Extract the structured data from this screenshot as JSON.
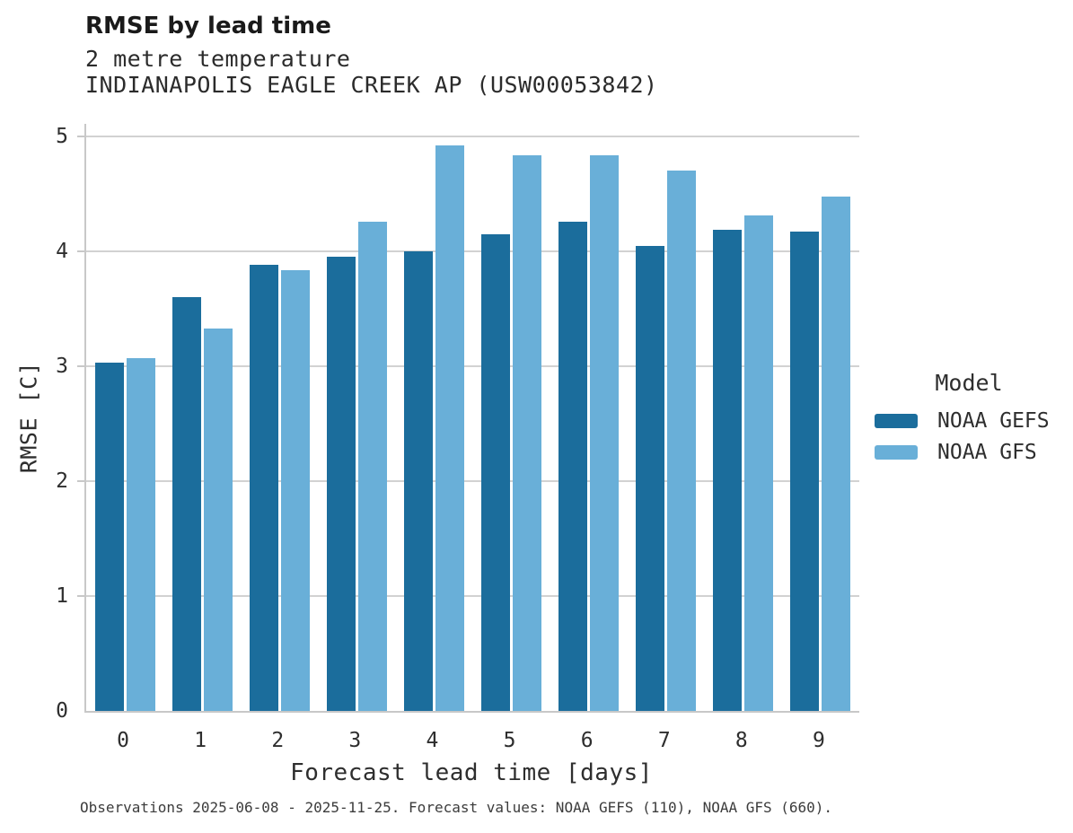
{
  "header": {
    "title": "RMSE by lead time",
    "subtitle1": "2 metre temperature",
    "subtitle2": "INDIANAPOLIS EAGLE CREEK AP (USW00053842)"
  },
  "chart_data": {
    "type": "bar",
    "title": "RMSE by lead time",
    "subtitle": "2 metre temperature — INDIANAPOLIS EAGLE CREEK AP (USW00053842)",
    "categories": [
      "0",
      "1",
      "2",
      "3",
      "4",
      "5",
      "6",
      "7",
      "8",
      "9"
    ],
    "series": [
      {
        "name": "NOAA GEFS",
        "color": "#1b6d9c",
        "values": [
          3.03,
          3.6,
          3.88,
          3.95,
          4.0,
          4.15,
          4.26,
          4.05,
          4.19,
          4.17
        ]
      },
      {
        "name": "NOAA GFS",
        "color": "#69afd8",
        "values": [
          3.07,
          3.33,
          3.84,
          4.26,
          4.92,
          4.84,
          4.84,
          4.7,
          4.31,
          4.48
        ]
      }
    ],
    "xlabel": "Forecast lead time [days]",
    "ylabel": "RMSE [C]",
    "ylim": [
      0,
      5.11
    ],
    "yticks": [
      0,
      1,
      2,
      3,
      4,
      5
    ],
    "grid": true,
    "legend_title": "Model",
    "legend_position": "right"
  },
  "legend": {
    "title": "Model",
    "entries": [
      {
        "label": "NOAA GEFS",
        "color": "#1b6d9c"
      },
      {
        "label": "NOAA GFS",
        "color": "#69afd8"
      }
    ]
  },
  "axes": {
    "xlabel": "Forecast lead time [days]",
    "ylabel": "RMSE [C]"
  },
  "footnote": "Observations 2025-06-08 - 2025-11-25. Forecast values: NOAA GEFS (110), NOAA GFS (660).",
  "colors": {
    "gefs_bar": "#1b6d9c",
    "gfs_bar": "#69afd8",
    "gridline": "#d2d2d2",
    "axis_spine": "#c8c8c8",
    "title_text": "#1a1a1a",
    "body_text": "#2e2e2e",
    "footnote_text": "#3c3c3c",
    "background": "#ffffff"
  }
}
